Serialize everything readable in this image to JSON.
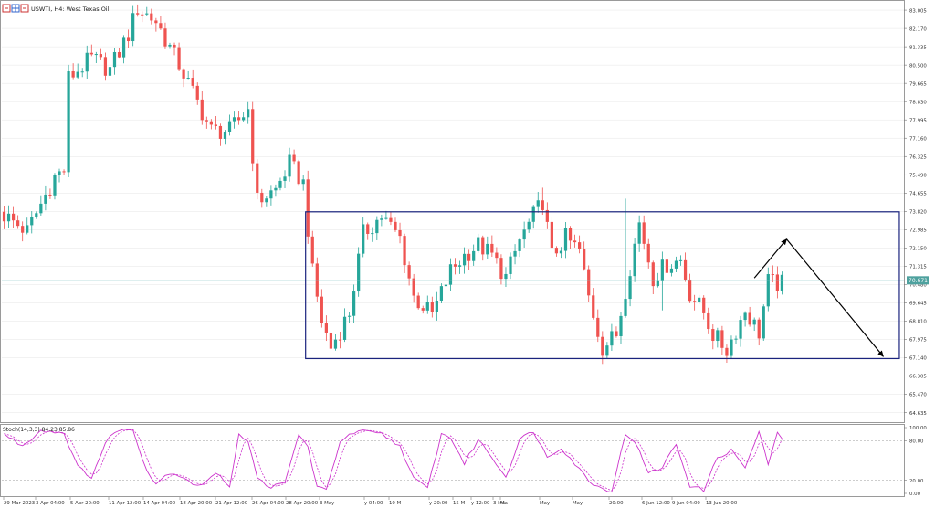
{
  "window": {
    "title": "USWTI, H4: West Texas Oil"
  },
  "colors": {
    "bull": "#26a69a",
    "bear": "#ef5350",
    "bid_line": "#7fbfbf",
    "bid_tag": "#4ea19e",
    "range_box": "#1a237e",
    "arrow": "#000000",
    "stoch_main": "#cc33cc",
    "stoch_signal": "#cc33cc",
    "grid": "#e6e6e6",
    "axis_text": "#333333"
  },
  "icons": [
    "chart-icon",
    "table-icon",
    "chart-icon"
  ],
  "chart_data": [
    {
      "type": "candlestick",
      "symbol": "USWTI",
      "timeframe": "H4",
      "title": "USWTI, H4: West Texas Oil",
      "y_ticks": [
        "83.005",
        "82.170",
        "81.335",
        "80.500",
        "79.665",
        "78.830",
        "77.995",
        "77.160",
        "76.325",
        "75.490",
        "74.655",
        "73.820",
        "72.985",
        "72.150",
        "71.315",
        "70.480",
        "69.645",
        "68.810",
        "67.975",
        "67.140",
        "66.305",
        "65.470",
        "64.635"
      ],
      "ylim": [
        64.2,
        83.3
      ],
      "current_price": "70.671",
      "current_price_value": 70.671,
      "x_ticks": [
        "29 Mar 2023",
        "3 Apr 04:00",
        "5 Apr 20:00",
        "11 Apr 12:00",
        "14 Apr 04:00",
        "18 Apr 20:00",
        "21 Apr 12:00",
        "26 Apr 04:00",
        "28 Apr 20:00",
        "3 May",
        "y 04:00",
        "10 M",
        "y 20:00",
        "15 M",
        "y 12:00",
        "3 Ma",
        "Ma",
        "May",
        "May",
        "20:00",
        "6 Jun 12:00",
        "9 Jun 04:00",
        "13 Jun 20:00"
      ],
      "candle_count": 170,
      "anchors": [
        [
          0,
          73.8
        ],
        [
          6,
          72.9
        ],
        [
          12,
          75.4
        ],
        [
          14,
          75.7
        ],
        [
          15,
          79.9
        ],
        [
          20,
          80.8
        ],
        [
          24,
          80.3
        ],
        [
          28,
          81.9
        ],
        [
          30,
          83.1
        ],
        [
          34,
          82.5
        ],
        [
          40,
          80.1
        ],
        [
          46,
          77.5
        ],
        [
          50,
          77.5
        ],
        [
          54,
          78.5
        ],
        [
          56,
          74.3
        ],
        [
          60,
          74.8
        ],
        [
          63,
          76.0
        ],
        [
          66,
          75.1
        ],
        [
          68,
          71.0
        ],
        [
          70,
          68.8
        ],
        [
          72,
          67.6
        ],
        [
          76,
          69.2
        ],
        [
          79,
          72.8
        ],
        [
          83,
          73.6
        ],
        [
          87,
          72.6
        ],
        [
          90,
          69.9
        ],
        [
          94,
          69.1
        ],
        [
          98,
          71.1
        ],
        [
          101,
          71.8
        ],
        [
          104,
          72.3
        ],
        [
          107,
          71.8
        ],
        [
          110,
          70.8
        ],
        [
          113,
          72.5
        ],
        [
          116,
          73.6
        ],
        [
          118,
          74.3
        ],
        [
          120,
          71.8
        ],
        [
          123,
          72.6
        ],
        [
          126,
          72.0
        ],
        [
          128,
          69.9
        ],
        [
          131,
          67.6
        ],
        [
          134,
          68.2
        ],
        [
          137,
          71.3
        ],
        [
          139,
          73.3
        ],
        [
          142,
          70.8
        ],
        [
          145,
          71.4
        ],
        [
          148,
          71.6
        ],
        [
          150,
          70.1
        ],
        [
          153,
          69.2
        ],
        [
          155,
          68.2
        ],
        [
          158,
          67.5
        ],
        [
          162,
          69.3
        ],
        [
          165,
          68.3
        ],
        [
          167,
          70.6
        ],
        [
          169,
          70.5
        ]
      ],
      "spikes": [
        {
          "index": 71,
          "low": 64.1
        },
        {
          "index": 117,
          "high": 74.9
        },
        {
          "index": 135,
          "high": 74.4
        },
        {
          "index": 143,
          "low": 69.3
        }
      ],
      "range_box": {
        "from_index": 66,
        "to_index": 195,
        "top": 73.8,
        "bottom": 67.1
      },
      "projection": [
        {
          "index": 163,
          "price": 70.78
        },
        {
          "index": 170,
          "price": 72.55
        },
        {
          "index": 191,
          "price": 67.2
        }
      ]
    },
    {
      "type": "line",
      "title": "Stoch(14,3,3) 84.23 85.86",
      "series": [
        {
          "name": "Stoch main",
          "value": 84.23
        },
        {
          "name": "Stoch signal",
          "value": 85.86
        }
      ],
      "y_ticks": [
        "100.00",
        "80.00",
        "20.00",
        "0.00"
      ],
      "ylim": [
        0,
        100
      ],
      "levels": [
        80,
        20
      ],
      "anchors": [
        [
          0,
          90
        ],
        [
          4,
          72
        ],
        [
          8,
          96
        ],
        [
          13,
          92
        ],
        [
          16,
          40
        ],
        [
          19,
          25
        ],
        [
          22,
          75
        ],
        [
          24,
          95
        ],
        [
          28,
          97
        ],
        [
          31,
          35
        ],
        [
          33,
          15
        ],
        [
          36,
          32
        ],
        [
          39,
          25
        ],
        [
          42,
          10
        ],
        [
          46,
          30
        ],
        [
          49,
          12
        ],
        [
          51,
          90
        ],
        [
          53,
          80
        ],
        [
          55,
          22
        ],
        [
          58,
          10
        ],
        [
          61,
          15
        ],
        [
          64,
          90
        ],
        [
          66,
          70
        ],
        [
          68,
          10
        ],
        [
          70,
          4
        ],
        [
          73,
          80
        ],
        [
          77,
          95
        ],
        [
          82,
          90
        ],
        [
          86,
          72
        ],
        [
          89,
          22
        ],
        [
          92,
          8
        ],
        [
          95,
          90
        ],
        [
          97,
          85
        ],
        [
          100,
          45
        ],
        [
          103,
          82
        ],
        [
          106,
          55
        ],
        [
          109,
          25
        ],
        [
          112,
          82
        ],
        [
          115,
          95
        ],
        [
          118,
          55
        ],
        [
          121,
          70
        ],
        [
          124,
          45
        ],
        [
          127,
          20
        ],
        [
          129,
          10
        ],
        [
          132,
          4
        ],
        [
          135,
          90
        ],
        [
          137,
          80
        ],
        [
          140,
          30
        ],
        [
          143,
          40
        ],
        [
          146,
          75
        ],
        [
          149,
          12
        ],
        [
          152,
          5
        ],
        [
          155,
          55
        ],
        [
          158,
          65
        ],
        [
          161,
          40
        ],
        [
          164,
          92
        ],
        [
          166,
          45
        ],
        [
          168,
          90
        ],
        [
          169,
          84
        ]
      ]
    }
  ]
}
